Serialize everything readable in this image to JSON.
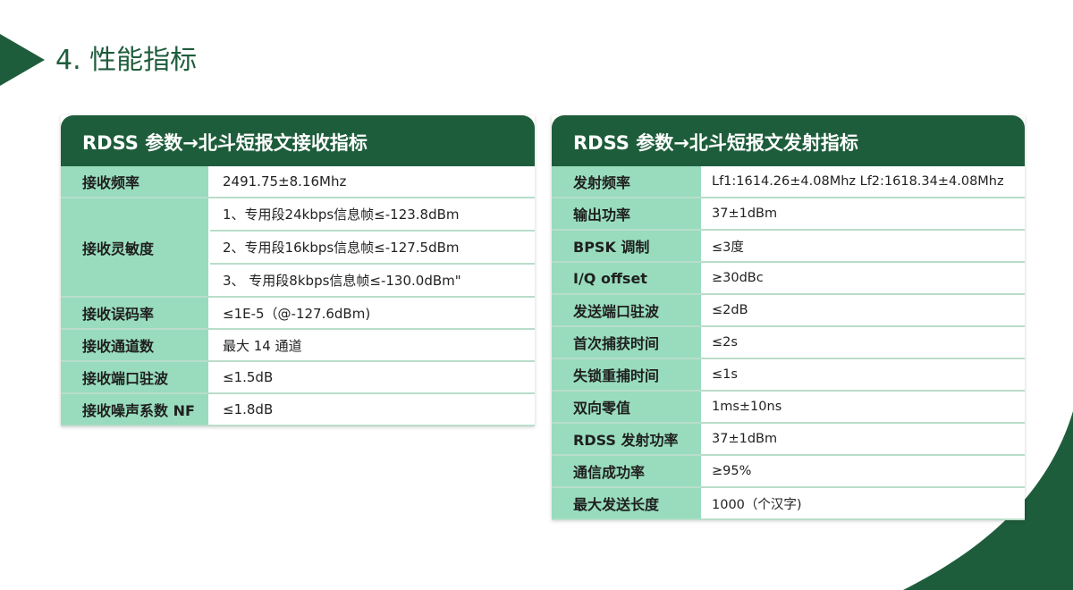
{
  "page": {
    "title": "4. 性能指标",
    "colors": {
      "brand_green": "#1e5d3b",
      "label_fill": "#98dcbd"
    }
  },
  "left_table": {
    "header": "RDSS 参数→北斗短报文接收指标",
    "rows": [
      {
        "label": "接收频率",
        "values": [
          "2491.75±8.16Mhz"
        ]
      },
      {
        "label": "接收灵敏度",
        "values": [
          "1、专用段24kbps信息帧≤-123.8dBm",
          "2、专用段16kbps信息帧≤-127.5dBm",
          "3、 专用段8kbps信息帧≤-130.0dBm\""
        ]
      },
      {
        "label": "接收误码率",
        "values": [
          "≤1E-5（@-127.6dBm)"
        ]
      },
      {
        "label": "接收通道数",
        "values": [
          "最大 14 通道"
        ]
      },
      {
        "label": "接收端口驻波",
        "values": [
          "≤1.5dB"
        ]
      },
      {
        "label": "接收噪声系数 NF",
        "values": [
          "≤1.8dB"
        ]
      }
    ]
  },
  "right_table": {
    "header": "RDSS 参数→北斗短报文发射指标",
    "rows": [
      {
        "label": "发射频率",
        "value": "Lf1:1614.26±4.08Mhz  Lf2:1618.34±4.08Mhz"
      },
      {
        "label": "输出功率",
        "value": "37±1dBm"
      },
      {
        "label": "BPSK 调制",
        "value": "≤3度"
      },
      {
        "label": "I/Q offset",
        "value": "≥30dBc"
      },
      {
        "label": "发送端口驻波",
        "value": "≤2dB"
      },
      {
        "label": "首次捕获时间",
        "value": "≤2s"
      },
      {
        "label": "失锁重捕时间",
        "value": "≤1s"
      },
      {
        "label": "双向零值",
        "value": "1ms±10ns"
      },
      {
        "label": "RDSS 发射功率",
        "value": "37±1dBm"
      },
      {
        "label": "通信成功率",
        "value": "≥95%"
      },
      {
        "label": "最大发送长度",
        "value": "1000（个汉字)"
      }
    ]
  }
}
